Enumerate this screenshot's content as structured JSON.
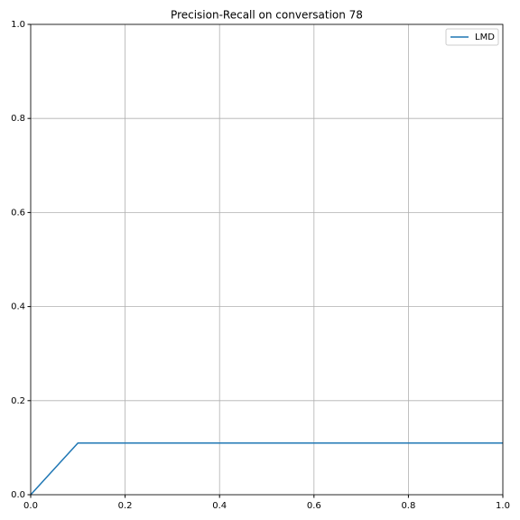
{
  "chart_data": {
    "type": "line",
    "title": "Precision-Recall on conversation 78",
    "x": [
      0,
      0.1,
      1.0
    ],
    "series": [
      {
        "name": "LMD",
        "color": "#1f77b4",
        "values": [
          0,
          0.11,
          0.11
        ]
      }
    ],
    "xlim": [
      0,
      1
    ],
    "ylim": [
      0,
      1
    ],
    "xticks": [
      {
        "value": 0,
        "label": "0.0"
      },
      0.2,
      0.4,
      0.6,
      0.8,
      {
        "value": 1,
        "label": "1.0"
      }
    ],
    "yticks": [
      {
        "value": 0,
        "label": "0.0"
      },
      0.2,
      0.4,
      0.6,
      0.8,
      {
        "value": 1,
        "label": "1.0"
      }
    ],
    "grid": true,
    "legend": "upper right"
  }
}
